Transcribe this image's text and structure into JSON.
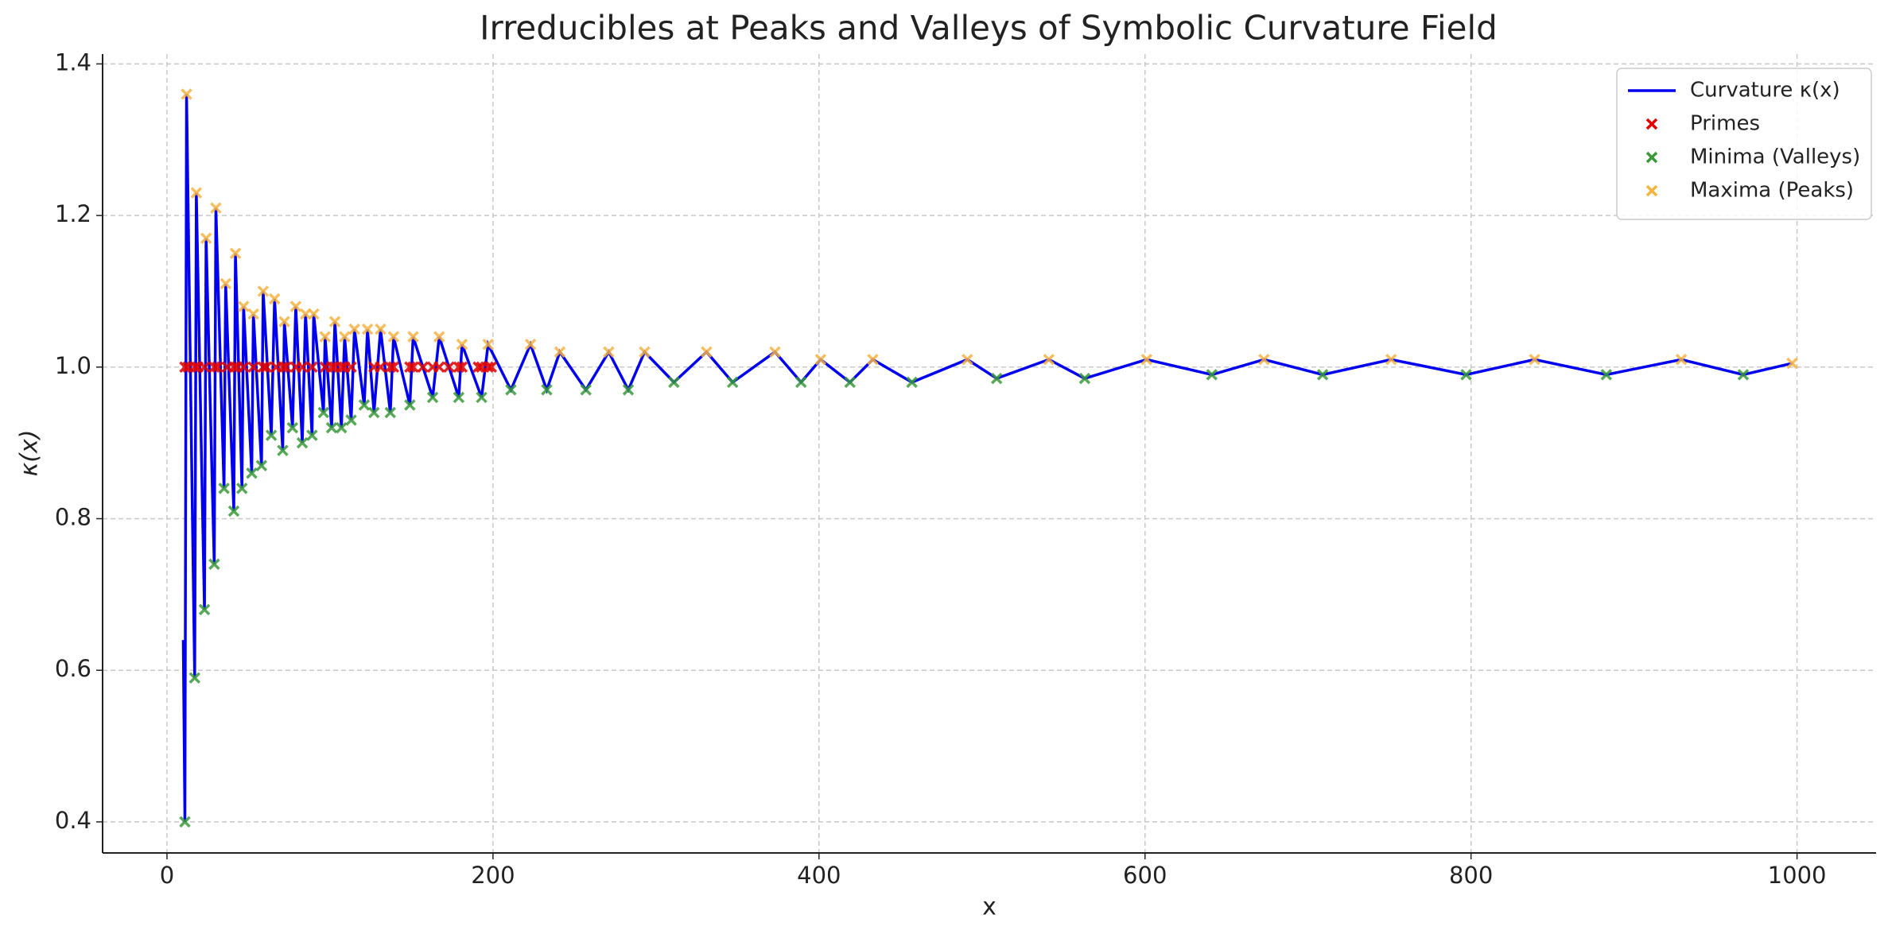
{
  "chart_data": {
    "type": "line",
    "title": "Irreducibles at Peaks and Valleys of Symbolic Curvature Field",
    "x_label": "x",
    "y_label": "κ(x)",
    "xlim": [
      -39.5,
      1048.5
    ],
    "ylim": [
      0.359,
      1.413
    ],
    "xticks": [
      0,
      200,
      400,
      600,
      800,
      1000
    ],
    "yticks": [
      0.4,
      0.6,
      0.8,
      {
        "value": 1,
        "label": "1.0"
      },
      1.2,
      1.4
    ],
    "grid": true,
    "legend": "upper right",
    "series": [
      {
        "name": "Curvature κ(x)",
        "type": "line",
        "color": "#0000ee",
        "x": [
          10,
          11,
          12,
          17,
          18,
          23,
          24,
          29,
          30,
          35,
          36,
          41,
          42,
          46,
          47,
          52,
          53,
          58,
          59,
          64,
          66,
          71,
          72,
          77,
          79,
          83,
          85,
          89,
          90,
          96,
          97,
          101,
          103,
          107,
          109,
          113,
          115,
          121,
          123,
          127,
          131,
          137,
          139,
          149,
          151,
          163,
          167,
          179,
          181,
          193,
          197,
          211,
          223,
          233,
          241,
          257,
          271,
          283,
          293,
          311,
          331,
          347,
          373,
          389,
          401,
          419,
          433,
          457,
          491,
          509,
          541,
          563,
          601,
          641,
          673,
          709,
          751,
          797,
          839,
          883,
          929,
          967,
          997
        ],
        "values": [
          0.64,
          0.4,
          1.36,
          0.59,
          1.23,
          0.68,
          1.17,
          0.74,
          1.21,
          0.84,
          1.11,
          0.81,
          1.15,
          0.84,
          1.08,
          0.86,
          1.07,
          0.87,
          1.1,
          0.91,
          1.09,
          0.89,
          1.06,
          0.92,
          1.08,
          0.9,
          1.07,
          0.91,
          1.07,
          0.94,
          1.04,
          0.92,
          1.06,
          0.92,
          1.04,
          0.93,
          1.05,
          0.95,
          1.05,
          0.94,
          1.05,
          0.94,
          1.04,
          0.95,
          1.04,
          0.96,
          1.04,
          0.96,
          1.03,
          0.96,
          1.03,
          0.97,
          1.03,
          0.97,
          1.02,
          0.97,
          1.02,
          0.97,
          1.02,
          0.98,
          1.02,
          0.98,
          1.02,
          0.98,
          1.01,
          0.98,
          1.01,
          0.98,
          1.01,
          0.985,
          1.01,
          0.985,
          1.01,
          0.99,
          1.01,
          0.99,
          1.01,
          0.99,
          1.01,
          0.99,
          1.01,
          0.99,
          1.005
        ]
      },
      {
        "name": "Primes",
        "type": "scatter",
        "color": "#e00000",
        "x": [
          11,
          13,
          17,
          19,
          23,
          29,
          31,
          37,
          41,
          43,
          47,
          53,
          59,
          61,
          67,
          71,
          73,
          79,
          83,
          89,
          97,
          101,
          103,
          107,
          109,
          113,
          127,
          131,
          137,
          139,
          149,
          151,
          157,
          163,
          167,
          173,
          179,
          181,
          191,
          193,
          197,
          199
        ],
        "values": [
          1,
          1,
          1,
          1,
          1,
          1,
          1,
          1,
          1,
          1,
          1,
          1,
          1,
          1,
          1,
          1,
          1,
          1,
          1,
          1,
          1,
          1,
          1,
          1,
          1,
          1,
          1,
          1,
          1,
          1,
          1,
          1,
          1,
          1,
          1,
          1,
          1,
          1,
          1,
          1,
          1,
          1
        ]
      },
      {
        "name": "Minima (Valleys)",
        "type": "scatter",
        "color": "#3a9a3a",
        "x": [
          11,
          17,
          23,
          29,
          35,
          41,
          46,
          52,
          58,
          64,
          71,
          77,
          83,
          89,
          96,
          101,
          107,
          113,
          121,
          127,
          137,
          149,
          163,
          179,
          193,
          211,
          233,
          257,
          283,
          311,
          347,
          389,
          419,
          457,
          509,
          563,
          641,
          709,
          797,
          883,
          967
        ],
        "values": [
          0.4,
          0.59,
          0.68,
          0.74,
          0.84,
          0.81,
          0.84,
          0.86,
          0.87,
          0.91,
          0.89,
          0.92,
          0.9,
          0.91,
          0.94,
          0.92,
          0.92,
          0.93,
          0.95,
          0.94,
          0.94,
          0.95,
          0.96,
          0.96,
          0.96,
          0.97,
          0.97,
          0.97,
          0.97,
          0.98,
          0.98,
          0.98,
          0.98,
          0.98,
          0.985,
          0.985,
          0.99,
          0.99,
          0.99,
          0.99,
          0.99
        ]
      },
      {
        "name": "Maxima (Peaks)",
        "type": "scatter",
        "color": "#f5b342",
        "x": [
          12,
          18,
          24,
          30,
          36,
          42,
          47,
          53,
          59,
          66,
          72,
          79,
          85,
          90,
          97,
          103,
          109,
          115,
          123,
          131,
          139,
          151,
          167,
          181,
          197,
          223,
          241,
          271,
          293,
          331,
          373,
          401,
          433,
          491,
          541,
          601,
          673,
          751,
          839,
          929,
          997
        ],
        "values": [
          1.36,
          1.23,
          1.17,
          1.21,
          1.11,
          1.15,
          1.08,
          1.07,
          1.1,
          1.09,
          1.06,
          1.08,
          1.07,
          1.07,
          1.04,
          1.06,
          1.04,
          1.05,
          1.05,
          1.05,
          1.04,
          1.04,
          1.04,
          1.03,
          1.03,
          1.03,
          1.02,
          1.02,
          1.02,
          1.02,
          1.02,
          1.01,
          1.01,
          1.01,
          1.01,
          1.01,
          1.01,
          1.01,
          1.01,
          1.01,
          1.005
        ]
      }
    ]
  }
}
